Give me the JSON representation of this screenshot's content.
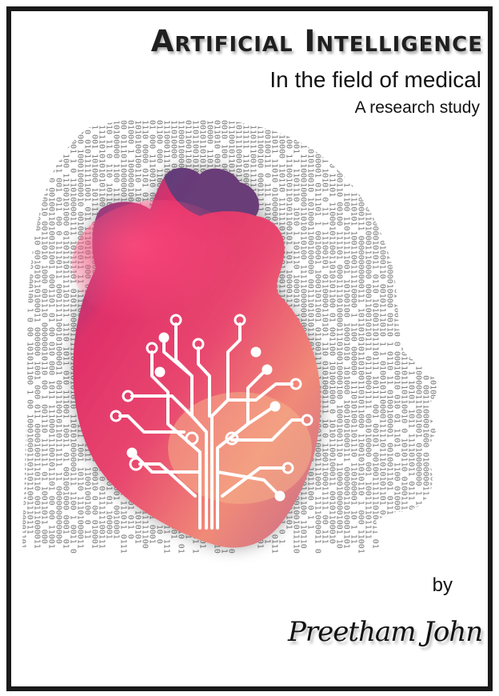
{
  "cover": {
    "title": "Artificial Intelligence",
    "subtitle": "In the field of medical",
    "tagline": "A research study",
    "by_label": "by",
    "author": "Preetham John"
  },
  "artwork": {
    "heart": "heart-illustration",
    "circuit": "circuit-tree-icon",
    "background": "binary-code-head-silhouette",
    "colors": {
      "pink": "#e8356a",
      "purple": "#6a4c8c",
      "peach": "#f2a67e",
      "digits": "#7a7a7a"
    }
  }
}
